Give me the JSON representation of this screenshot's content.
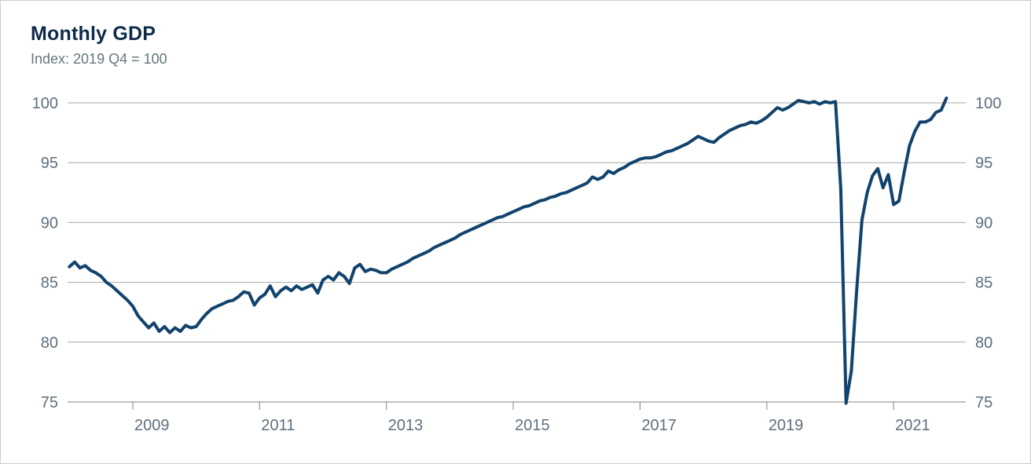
{
  "chart_data": {
    "type": "line",
    "title": "Monthly GDP",
    "subtitle": "Index: 2019 Q4 = 100",
    "frequency": "monthly",
    "x_start": "2008-01",
    "x_end": "2021-11",
    "x_tick_years": [
      2009,
      2011,
      2013,
      2015,
      2017,
      2019,
      2021
    ],
    "x_tick_labels": [
      "2009",
      "2011",
      "2013",
      "2015",
      "2017",
      "2019",
      "2021"
    ],
    "y_ticks": [
      75,
      80,
      85,
      90,
      95,
      100
    ],
    "y_tick_labels": [
      "75",
      "80",
      "85",
      "90",
      "95",
      "100"
    ],
    "ylim": [
      75,
      100
    ],
    "grid": "horizontal",
    "legend": "none",
    "y_axis_labels_sides": "both",
    "series": [
      {
        "name": "Monthly GDP index",
        "values": [
          86.3,
          86.7,
          86.2,
          86.4,
          86.0,
          85.8,
          85.5,
          85.0,
          84.7,
          84.3,
          83.9,
          83.5,
          83.0,
          82.2,
          81.7,
          81.2,
          81.6,
          80.9,
          81.3,
          80.8,
          81.2,
          80.9,
          81.4,
          81.2,
          81.3,
          81.9,
          82.4,
          82.8,
          83.0,
          83.2,
          83.4,
          83.5,
          83.8,
          84.2,
          84.1,
          83.1,
          83.7,
          84.0,
          84.7,
          83.8,
          84.3,
          84.6,
          84.3,
          84.7,
          84.4,
          84.6,
          84.8,
          84.1,
          85.2,
          85.5,
          85.2,
          85.8,
          85.5,
          84.9,
          86.2,
          86.5,
          85.9,
          86.1,
          86.0,
          85.8,
          85.8,
          86.1,
          86.3,
          86.5,
          86.7,
          87.0,
          87.2,
          87.4,
          87.6,
          87.9,
          88.1,
          88.3,
          88.5,
          88.7,
          89.0,
          89.2,
          89.4,
          89.6,
          89.8,
          90.0,
          90.2,
          90.4,
          90.5,
          90.7,
          90.9,
          91.1,
          91.3,
          91.4,
          91.6,
          91.8,
          91.9,
          92.1,
          92.2,
          92.4,
          92.5,
          92.7,
          92.9,
          93.1,
          93.3,
          93.8,
          93.6,
          93.8,
          94.3,
          94.1,
          94.4,
          94.6,
          94.9,
          95.1,
          95.3,
          95.4,
          95.4,
          95.5,
          95.7,
          95.9,
          96.0,
          96.2,
          96.4,
          96.6,
          96.9,
          97.2,
          97.0,
          96.8,
          96.7,
          97.1,
          97.4,
          97.7,
          97.9,
          98.1,
          98.2,
          98.4,
          98.3,
          98.5,
          98.8,
          99.2,
          99.6,
          99.4,
          99.6,
          99.9,
          100.2,
          100.1,
          100.0,
          100.1,
          99.9,
          100.1,
          100.0,
          100.1,
          92.8,
          74.9,
          77.6,
          84.3,
          90.2,
          92.5,
          93.9,
          94.5,
          92.9,
          94.0,
          91.5,
          91.8,
          94.2,
          96.4,
          97.6,
          98.4,
          98.4,
          98.6,
          99.2,
          99.4,
          100.4
        ]
      }
    ]
  },
  "colors": {
    "line": "#12436d",
    "title_text": "#0f2b4c",
    "subtitle_text": "#65757f",
    "axis_text": "#5e6f7e",
    "gridline": "#a8a8a8",
    "axis_line": "#828282",
    "background": "#ffffff",
    "border": "#c9cdd6"
  }
}
